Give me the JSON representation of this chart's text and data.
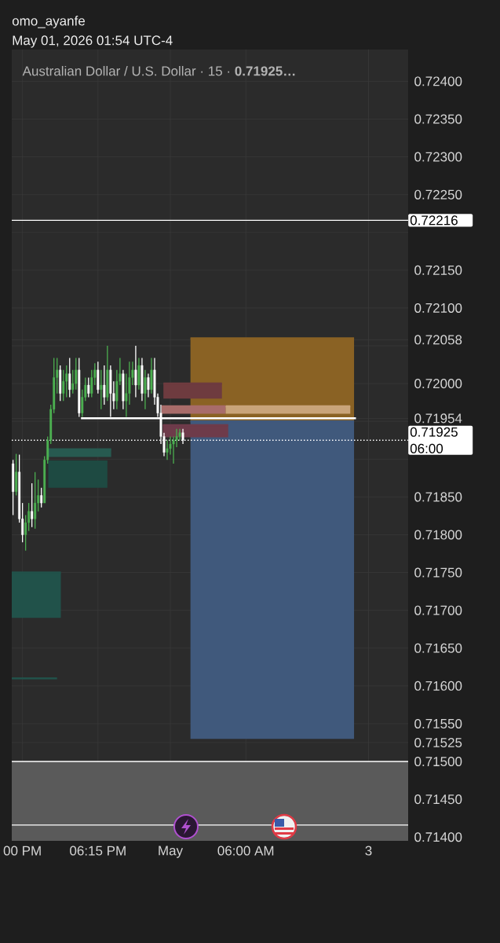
{
  "chart_data": {
    "type": "candlestick",
    "title": "omo_ayanfe",
    "subtitle": "May 01, 2026 01:54 UTC-4",
    "x": [
      "2026-04-30T11:30",
      "2026-04-30T11:45",
      "2026-04-30T12:00",
      "2026-04-30T12:15",
      "2026-04-30T12:30",
      "2026-04-30T12:45",
      "2026-04-30T13:00",
      "2026-04-30T13:15",
      "2026-04-30T13:30",
      "2026-04-30T13:45",
      "2026-04-30T14:00",
      "2026-04-30T14:15",
      "2026-04-30T14:30",
      "2026-04-30T14:45",
      "2026-04-30T15:00",
      "2026-04-30T15:15",
      "2026-04-30T15:30",
      "2026-04-30T15:45",
      "2026-04-30T16:00",
      "2026-04-30T16:15",
      "2026-04-30T16:30",
      "2026-04-30T16:45",
      "2026-04-30T17:00",
      "2026-04-30T17:15",
      "2026-04-30T17:30",
      "2026-04-30T17:45",
      "2026-04-30T18:00",
      "2026-04-30T18:15",
      "2026-04-30T18:30",
      "2026-04-30T18:45",
      "2026-04-30T19:00",
      "2026-04-30T19:15",
      "2026-04-30T19:30",
      "2026-04-30T19:45",
      "2026-04-30T20:00",
      "2026-04-30T20:15",
      "2026-04-30T20:30",
      "2026-04-30T20:45",
      "2026-04-30T21:00",
      "2026-04-30T21:15",
      "2026-04-30T21:30",
      "2026-04-30T21:45",
      "2026-04-30T22:00",
      "2026-04-30T22:15",
      "2026-04-30T22:30",
      "2026-04-30T22:45",
      "2026-04-30T23:00",
      "2026-04-30T23:15",
      "2026-04-30T23:30",
      "2026-04-30T23:45",
      "2026-05-01T00:00",
      "2026-05-01T00:15",
      "2026-05-01T00:30",
      "2026-05-01T00:45",
      "2026-05-01T01:00"
    ],
    "ohlc": [
      [
        0.71894,
        0.71899,
        0.71826,
        0.71857
      ],
      [
        0.71857,
        0.71907,
        0.71852,
        0.71883
      ],
      [
        0.71883,
        0.71906,
        0.71816,
        0.71821
      ],
      [
        0.71821,
        0.71842,
        0.7179,
        0.718
      ],
      [
        0.718,
        0.71826,
        0.71779,
        0.71816
      ],
      [
        0.71816,
        0.71842,
        0.71805,
        0.71831
      ],
      [
        0.71831,
        0.71868,
        0.7181,
        0.71821
      ],
      [
        0.71821,
        0.71883,
        0.71808,
        0.71842
      ],
      [
        0.71842,
        0.71873,
        0.71831,
        0.71852
      ],
      [
        0.71852,
        0.71862,
        0.71836,
        0.71842
      ],
      [
        0.71842,
        0.71904,
        0.71842,
        0.71899
      ],
      [
        0.71899,
        0.7193,
        0.71894,
        0.71925
      ],
      [
        0.71925,
        0.71972,
        0.7192,
        0.71966
      ],
      [
        0.71966,
        0.72034,
        0.71961,
        0.72008
      ],
      [
        0.72008,
        0.72034,
        0.71987,
        0.72018
      ],
      [
        0.72018,
        0.72024,
        0.71977,
        0.71987
      ],
      [
        0.71987,
        0.72018,
        0.71977,
        0.72003
      ],
      [
        0.72003,
        0.72024,
        0.71982,
        0.72013
      ],
      [
        0.72013,
        0.72034,
        0.71982,
        0.71992
      ],
      [
        0.71992,
        0.72018,
        0.71987,
        0.72
      ],
      [
        0.72,
        0.72034,
        0.71992,
        0.72018
      ],
      [
        0.72018,
        0.72034,
        0.71956,
        0.71961
      ],
      [
        0.71961,
        0.71992,
        0.71956,
        0.71982
      ],
      [
        0.71982,
        0.72008,
        0.71977,
        0.71998
      ],
      [
        0.71998,
        0.72008,
        0.71982,
        0.71987
      ],
      [
        0.71987,
        0.72018,
        0.71982,
        0.72008
      ],
      [
        0.72008,
        0.72027,
        0.71998,
        0.72018
      ],
      [
        0.72018,
        0.72029,
        0.71987,
        0.71992
      ],
      [
        0.71992,
        0.72018,
        0.71966,
        0.71998
      ],
      [
        0.71998,
        0.72024,
        0.71972,
        0.71982
      ],
      [
        0.71982,
        0.7205,
        0.71977,
        0.72018
      ],
      [
        0.72018,
        0.72024,
        0.71956,
        0.71987
      ],
      [
        0.71987,
        0.72003,
        0.71966,
        0.71977
      ],
      [
        0.71977,
        0.72018,
        0.71966,
        0.72003
      ],
      [
        0.72003,
        0.72034,
        0.71998,
        0.72013
      ],
      [
        0.72013,
        0.72018,
        0.71966,
        0.71977
      ],
      [
        0.71977,
        0.72013,
        0.71956,
        0.71987
      ],
      [
        0.71987,
        0.72029,
        0.71972,
        0.72008
      ],
      [
        0.72008,
        0.72029,
        0.71998,
        0.72018
      ],
      [
        0.72018,
        0.7205,
        0.71982,
        0.71998
      ],
      [
        0.71998,
        0.72034,
        0.71992,
        0.72024
      ],
      [
        0.72024,
        0.72034,
        0.71977,
        0.71987
      ],
      [
        0.71987,
        0.72018,
        0.71966,
        0.72008
      ],
      [
        0.72008,
        0.72013,
        0.71982,
        0.71992
      ],
      [
        0.71992,
        0.72034,
        0.71987,
        0.72018
      ],
      [
        0.72018,
        0.72034,
        0.71972,
        0.71982
      ],
      [
        0.71982,
        0.71987,
        0.71956,
        0.71961
      ],
      [
        0.71961,
        0.71972,
        0.7192,
        0.7193
      ],
      [
        0.7193,
        0.71935,
        0.71904,
        0.71909
      ],
      [
        0.71909,
        0.71925,
        0.71899,
        0.71914
      ],
      [
        0.71914,
        0.7193,
        0.71906,
        0.7192
      ],
      [
        0.7192,
        0.7193,
        0.71894,
        0.71925
      ],
      [
        0.71925,
        0.7194,
        0.71916,
        0.7193
      ],
      [
        0.7193,
        0.7194,
        0.71925,
        0.71935
      ],
      [
        0.71935,
        0.7194,
        0.7192,
        0.71925
      ]
    ],
    "colors": [
      "#ffffff",
      "#4caf50",
      "#ffffff",
      "#ffffff",
      "#4caf50",
      "#4caf50",
      "#ffffff",
      "#4caf50",
      "#4caf50",
      "#ffffff",
      "#4caf50",
      "#4caf50",
      "#4caf50",
      "#4caf50",
      "#4caf50",
      "#ffffff",
      "#4caf50",
      "#4caf50",
      "#ffffff",
      "#4caf50",
      "#4caf50",
      "#ffffff",
      "#4caf50",
      "#4caf50",
      "#ffffff",
      "#4caf50",
      "#4caf50",
      "#ffffff",
      "#4caf50",
      "#ffffff",
      "#4caf50",
      "#ffffff",
      "#ffffff",
      "#4caf50",
      "#4caf50",
      "#ffffff",
      "#4caf50",
      "#4caf50",
      "#4caf50",
      "#ffffff",
      "#4caf50",
      "#ffffff",
      "#4caf50",
      "#ffffff",
      "#4caf50",
      "#ffffff",
      "#ffffff",
      "#ffffff",
      "#ffffff",
      "#4caf50",
      "#4caf50",
      "#4caf50",
      "#4caf50",
      "#4caf50",
      "#ffffff"
    ],
    "series": [
      {
        "type": "line",
        "x": [
          "2026-05-01T01:36",
          "2026-05-01T14:36"
        ],
        "values": [
          0.7206,
          0.7206
        ],
        "lower": [
          0.7195,
          0.7195
        ],
        "upper": [
          0.7206,
          0.7206
        ],
        "color": "#8a6224"
      },
      {
        "type": "line",
        "x": [
          "2026-05-01T01:36",
          "2026-05-01T14:36"
        ],
        "values": [
          0.7195,
          0.7195
        ],
        "lower": [
          0.7153,
          0.7153
        ],
        "upper": [
          0.7195,
          0.7195
        ],
        "color": "#40597c"
      },
      {
        "type": "line",
        "x": [
          "2026-04-30T23:27",
          "2026-05-01T04:06"
        ],
        "values": [
          0.72,
          0.72
        ],
        "lower": [
          0.7198,
          0.7198
        ],
        "upper": [
          0.72,
          0.72
        ],
        "color": "#6e3b3f"
      },
      {
        "type": "line",
        "x": [
          "2026-04-30T23:18",
          "2026-05-01T04:24"
        ],
        "values": [
          0.7197,
          0.7197
        ],
        "lower": [
          0.7196,
          0.7196
        ],
        "upper": [
          0.7197,
          0.7197
        ],
        "color": "#a86c6a"
      },
      {
        "type": "line",
        "x": [
          "2026-05-01T04:24",
          "2026-05-01T14:18"
        ],
        "values": [
          0.7197,
          0.7197
        ],
        "lower": [
          0.7196,
          0.7196
        ],
        "upper": [
          0.7197,
          0.7197
        ],
        "color": "#c9a47a"
      },
      {
        "type": "line",
        "x": [
          "2026-04-30T23:24",
          "2026-05-01T04:36"
        ],
        "values": [
          0.71945,
          0.71945
        ],
        "lower": [
          0.71929,
          0.71929
        ],
        "upper": [
          0.71945,
          0.71945
        ],
        "color": "#6e3b4a"
      },
      {
        "type": "line",
        "x": [
          "2026-04-30T14:18",
          "2026-04-30T19:18"
        ],
        "values": [
          0.71913,
          0.71913
        ],
        "lower": [
          0.71903,
          0.71903
        ],
        "upper": [
          0.71913,
          0.71913
        ],
        "color": "#275a50"
      },
      {
        "type": "line",
        "x": [
          "2026-04-30T14:18",
          "2026-04-30T19:00"
        ],
        "values": [
          0.71897,
          0.71897
        ],
        "lower": [
          0.71862,
          0.71862
        ],
        "upper": [
          0.71897,
          0.71897
        ],
        "color": "#1e4a42"
      },
      {
        "type": "line",
        "x": [
          "2026-04-30T11:24",
          "2026-04-30T15:18"
        ],
        "values": [
          0.7175,
          0.7175
        ],
        "lower": [
          0.7169,
          0.7169
        ],
        "upper": [
          0.7175,
          0.7175
        ],
        "color": "#21524a"
      },
      {
        "type": "line",
        "x": [
          "2026-04-30T11:24",
          "2026-04-30T15:00"
        ],
        "values": [
          0.7161,
          0.7161
        ],
        "color": "#21524a"
      },
      {
        "type": "line",
        "x": [
          "2026-04-30T16:54",
          "2026-05-01T14:45"
        ],
        "values": [
          0.71954,
          0.71954
        ],
        "color": "#ffffff"
      }
    ],
    "xlim": [
      "2026-04-30T11:24",
      "2026-05-01T18:54"
    ],
    "xticks": [
      {
        "value": "2026-04-30T12:15",
        "label": "00 PM"
      },
      {
        "value": "2026-04-30T18:15",
        "label": "06:15 PM"
      },
      {
        "value": "2026-05-01T00:00",
        "label": "May"
      },
      {
        "value": "2026-05-01T06:00",
        "label": "06:00 AM"
      },
      {
        "value": "2026-05-01T15:45",
        "label": "3"
      }
    ],
    "ylim": [
      0.71395,
      0.72442
    ],
    "yticks": [
      {
        "value": 0.714,
        "label": "0.71400"
      },
      {
        "value": 0.7145,
        "label": "0.71450"
      },
      {
        "value": 0.715,
        "label": "0.71500"
      },
      {
        "value": 0.71525,
        "label": "0.71525"
      },
      {
        "value": 0.7155,
        "label": "0.71550"
      },
      {
        "value": 0.716,
        "label": "0.71600"
      },
      {
        "value": 0.7165,
        "label": "0.71650"
      },
      {
        "value": 0.717,
        "label": "0.71700"
      },
      {
        "value": 0.7175,
        "label": "0.71750"
      },
      {
        "value": 0.718,
        "label": "0.71800"
      },
      {
        "value": 0.7185,
        "label": "0.71850"
      },
      {
        "value": 0.719,
        "label": null
      },
      {
        "value": 0.7195,
        "label": null
      },
      {
        "value": 0.71954,
        "label": "0.71954"
      },
      {
        "value": 0.72,
        "label": "0.72000"
      },
      {
        "value": 0.7205,
        "label": null
      },
      {
        "value": 0.72058,
        "label": "0.72058"
      },
      {
        "value": 0.721,
        "label": "0.72100"
      },
      {
        "value": 0.7215,
        "label": "0.72150"
      },
      {
        "value": 0.722,
        "label": null
      },
      {
        "value": 0.7225,
        "label": "0.72250"
      },
      {
        "value": 0.723,
        "label": "0.72300"
      },
      {
        "value": 0.7235,
        "label": "0.72350"
      },
      {
        "value": 0.724,
        "label": "0.72400"
      }
    ],
    "ref_lines": [
      {
        "axis": "y",
        "value": 0.72216,
        "label": "0.72216",
        "color": "#ffffff"
      },
      {
        "axis": "y",
        "value": 0.71925,
        "label": "0.71925 06:00",
        "color": "#ffffff",
        "line_style": "dotted"
      },
      {
        "axis": "y",
        "value": 0.715,
        "color": "#ffffff"
      },
      {
        "axis": "y",
        "value": 0.71416,
        "color": "#ffffff"
      }
    ],
    "bands": [
      {
        "axis": "y",
        "from": 0.71395,
        "to": 0.715,
        "color": "#5a5a5a"
      }
    ],
    "annotations": [
      "Australian Dollar / U.S. Dollar · 15 · **0.71925…**"
    ],
    "grid": true
  }
}
